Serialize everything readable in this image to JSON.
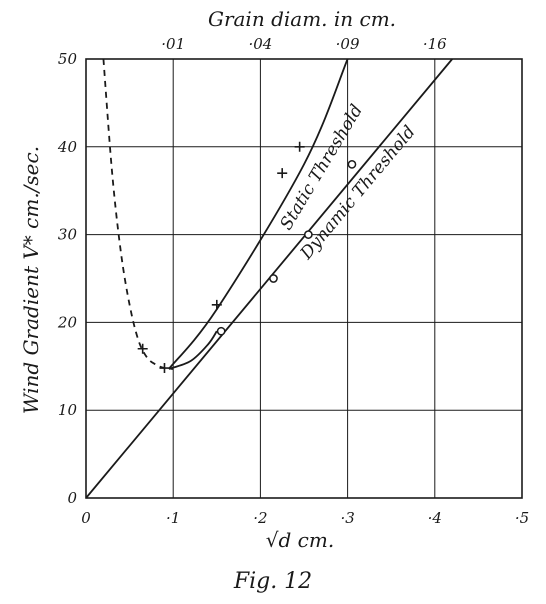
{
  "chart_data": {
    "type": "line",
    "caption": "Fig. 12",
    "xlabel": "√d cm.",
    "ylabel": "Wind Gradient V* cm./sec.",
    "top_axis_label": "Grain diam. in cm.",
    "xlim": [
      0,
      0.5
    ],
    "ylim": [
      0,
      50
    ],
    "grid": true,
    "x_ticks": [
      0,
      0.1,
      0.2,
      0.3,
      0.4,
      0.5
    ],
    "x_tick_labels": [
      "0",
      "·1",
      "·2",
      "·3",
      "·4",
      "·5"
    ],
    "y_ticks": [
      0,
      10,
      20,
      30,
      40,
      50
    ],
    "y_tick_labels": [
      "0",
      "10",
      "20",
      "30",
      "40",
      "50"
    ],
    "top_ticks": [
      {
        "sqrt_d": 0.1,
        "label": "·01"
      },
      {
        "sqrt_d": 0.2,
        "label": "·04"
      },
      {
        "sqrt_d": 0.3,
        "label": "·09"
      },
      {
        "sqrt_d": 0.4,
        "label": "·16"
      }
    ],
    "series": [
      {
        "name": "Static Threshold",
        "style": "solid",
        "x": [
          0.095,
          0.15,
          0.25,
          0.3
        ],
        "y": [
          14.7,
          21.5,
          38.0,
          50.0
        ]
      },
      {
        "name": "Dynamic Threshold",
        "style": "solid",
        "x": [
          0.0,
          0.42
        ],
        "y": [
          0.0,
          50.0
        ]
      },
      {
        "name": "",
        "style": "dashed",
        "x": [
          0.02,
          0.03,
          0.04,
          0.05,
          0.06,
          0.07,
          0.08,
          0.09,
          0.1
        ],
        "y": [
          50.0,
          37.0,
          28.0,
          22.0,
          18.0,
          16.0,
          15.2,
          14.8,
          14.7
        ]
      },
      {
        "name": "",
        "style": "solid",
        "x": [
          0.095,
          0.12,
          0.14,
          0.15
        ],
        "y": [
          14.7,
          15.6,
          17.5,
          19.0
        ]
      }
    ],
    "points_plus": [
      {
        "x": 0.065,
        "y": 17.0
      },
      {
        "x": 0.09,
        "y": 14.8
      },
      {
        "x": 0.15,
        "y": 22.0
      },
      {
        "x": 0.225,
        "y": 37.0
      },
      {
        "x": 0.245,
        "y": 40.0
      }
    ],
    "points_circle": [
      {
        "x": 0.155,
        "y": 19.0
      },
      {
        "x": 0.215,
        "y": 25.0
      },
      {
        "x": 0.255,
        "y": 30.0
      },
      {
        "x": 0.305,
        "y": 38.0
      }
    ]
  }
}
